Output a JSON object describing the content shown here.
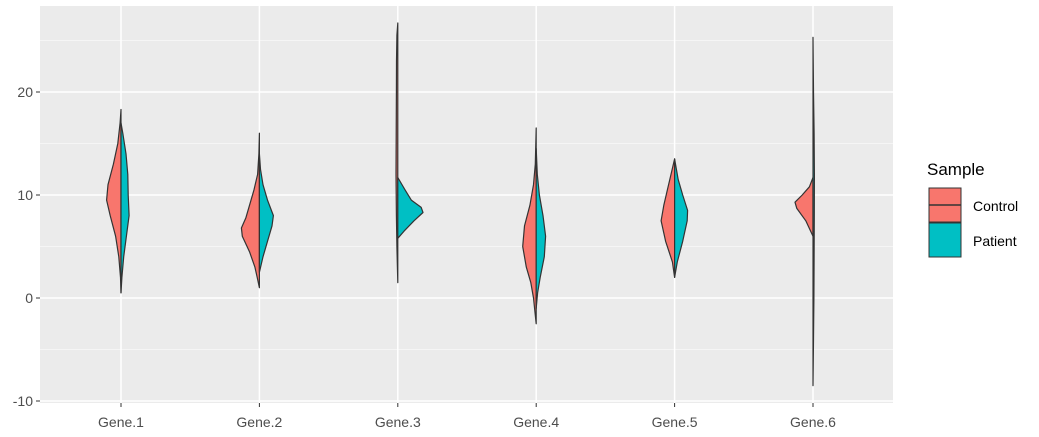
{
  "chart_data": {
    "type": "violin",
    "variant": "split",
    "categories": [
      "Gene.1",
      "Gene.2",
      "Gene.3",
      "Gene.4",
      "Gene.5",
      "Gene.6"
    ],
    "y_ticks": [
      -10,
      0,
      10,
      20
    ],
    "y_tick_labels": [
      "-10",
      "0",
      "10",
      "20"
    ],
    "ylim": [
      -10.5,
      28
    ],
    "grid": true,
    "legend": {
      "title": "Sample",
      "position": "right",
      "entries": [
        {
          "label": "Control",
          "color": "#F8766D"
        },
        {
          "label": "Patient",
          "color": "#00BFC4"
        }
      ]
    },
    "series": [
      {
        "name": "Control",
        "color": "#F8766D",
        "side": "left",
        "violins": [
          {
            "category": "Gene.1",
            "profile": [
              [
                0.5,
                0
              ],
              [
                2,
                0.03
              ],
              [
                4,
                0.12
              ],
              [
                6,
                0.3
              ],
              [
                8,
                0.6
              ],
              [
                9.5,
                0.8
              ],
              [
                11,
                0.72
              ],
              [
                13,
                0.42
              ],
              [
                15,
                0.18
              ],
              [
                17,
                0.05
              ],
              [
                18.3,
                0
              ]
            ]
          },
          {
            "category": "Gene.2",
            "profile": [
              [
                1,
                0
              ],
              [
                2,
                0.12
              ],
              [
                3,
                0.25
              ],
              [
                4.5,
                0.55
              ],
              [
                6,
                0.95
              ],
              [
                6.8,
                1.0
              ],
              [
                7.8,
                0.75
              ],
              [
                9,
                0.55
              ],
              [
                10.5,
                0.3
              ],
              [
                12,
                0.1
              ],
              [
                14,
                0.03
              ],
              [
                16,
                0
              ]
            ]
          },
          {
            "category": "Gene.3",
            "profile": [
              [
                1.5,
                0
              ],
              [
                3,
                0.02
              ],
              [
                5,
                0.05
              ],
              [
                8,
                0.08
              ],
              [
                12,
                0.1
              ],
              [
                16,
                0.09
              ],
              [
                20,
                0.08
              ],
              [
                23,
                0.07
              ],
              [
                25.5,
                0.05
              ],
              [
                26.7,
                0
              ]
            ]
          },
          {
            "category": "Gene.4",
            "profile": [
              [
                -2.5,
                0
              ],
              [
                -1.5,
                0.06
              ],
              [
                0,
                0.15
              ],
              [
                1.5,
                0.3
              ],
              [
                3,
                0.55
              ],
              [
                5,
                0.75
              ],
              [
                7,
                0.65
              ],
              [
                9,
                0.35
              ],
              [
                11,
                0.15
              ],
              [
                13,
                0.05
              ],
              [
                16.5,
                0
              ]
            ]
          },
          {
            "category": "Gene.5",
            "profile": [
              [
                2,
                0
              ],
              [
                3.5,
                0.12
              ],
              [
                5.5,
                0.5
              ],
              [
                7.5,
                0.75
              ],
              [
                9,
                0.6
              ],
              [
                10.5,
                0.4
              ],
              [
                12,
                0.2
              ],
              [
                13.5,
                0
              ]
            ]
          },
          {
            "category": "Gene.6",
            "profile": [
              [
                6,
                0
              ],
              [
                7.5,
                0.4
              ],
              [
                8.7,
                0.9
              ],
              [
                9.3,
                1.0
              ],
              [
                10,
                0.6
              ],
              [
                10.8,
                0.2
              ],
              [
                11.7,
                0
              ]
            ]
          }
        ]
      },
      {
        "name": "Patient",
        "color": "#00BFC4",
        "side": "right",
        "violins": [
          {
            "category": "Gene.1",
            "profile": [
              [
                0.5,
                0
              ],
              [
                2,
                0.05
              ],
              [
                4,
                0.15
              ],
              [
                6,
                0.3
              ],
              [
                8,
                0.45
              ],
              [
                10,
                0.4
              ],
              [
                12,
                0.38
              ],
              [
                14,
                0.28
              ],
              [
                16,
                0.1
              ],
              [
                17,
                0
              ]
            ]
          },
          {
            "category": "Gene.2",
            "profile": [
              [
                2.5,
                0
              ],
              [
                4,
                0.2
              ],
              [
                5.5,
                0.45
              ],
              [
                7,
                0.7
              ],
              [
                8,
                0.78
              ],
              [
                9.5,
                0.45
              ],
              [
                11,
                0.2
              ],
              [
                12.5,
                0.06
              ],
              [
                14,
                0
              ]
            ]
          },
          {
            "category": "Gene.3",
            "profile": [
              [
                5.8,
                0
              ],
              [
                6.5,
                0.35
              ],
              [
                7.5,
                0.9
              ],
              [
                8.3,
                1.4
              ],
              [
                8.8,
                1.3
              ],
              [
                9.5,
                0.75
              ],
              [
                10.5,
                0.4
              ],
              [
                11.7,
                0
              ]
            ]
          },
          {
            "category": "Gene.4",
            "profile": [
              [
                -1,
                0
              ],
              [
                0.5,
                0.08
              ],
              [
                2,
                0.22
              ],
              [
                4,
                0.45
              ],
              [
                6,
                0.52
              ],
              [
                8,
                0.38
              ],
              [
                10,
                0.18
              ],
              [
                12,
                0.06
              ],
              [
                14.5,
                0
              ]
            ]
          },
          {
            "category": "Gene.5",
            "profile": [
              [
                2,
                0
              ],
              [
                3.5,
                0.15
              ],
              [
                5.5,
                0.45
              ],
              [
                7.5,
                0.7
              ],
              [
                8.5,
                0.72
              ],
              [
                10,
                0.45
              ],
              [
                11.5,
                0.2
              ],
              [
                13,
                0.05
              ],
              [
                13.5,
                0
              ]
            ]
          },
          {
            "category": "Gene.6",
            "profile": [
              [
                -8.5,
                0
              ],
              [
                -4,
                0.03
              ],
              [
                0,
                0.05
              ],
              [
                4,
                0.06
              ],
              [
                8,
                0.07
              ],
              [
                12,
                0.08
              ],
              [
                16,
                0.06
              ],
              [
                20,
                0.03
              ],
              [
                25.3,
                0
              ]
            ]
          }
        ]
      }
    ]
  }
}
